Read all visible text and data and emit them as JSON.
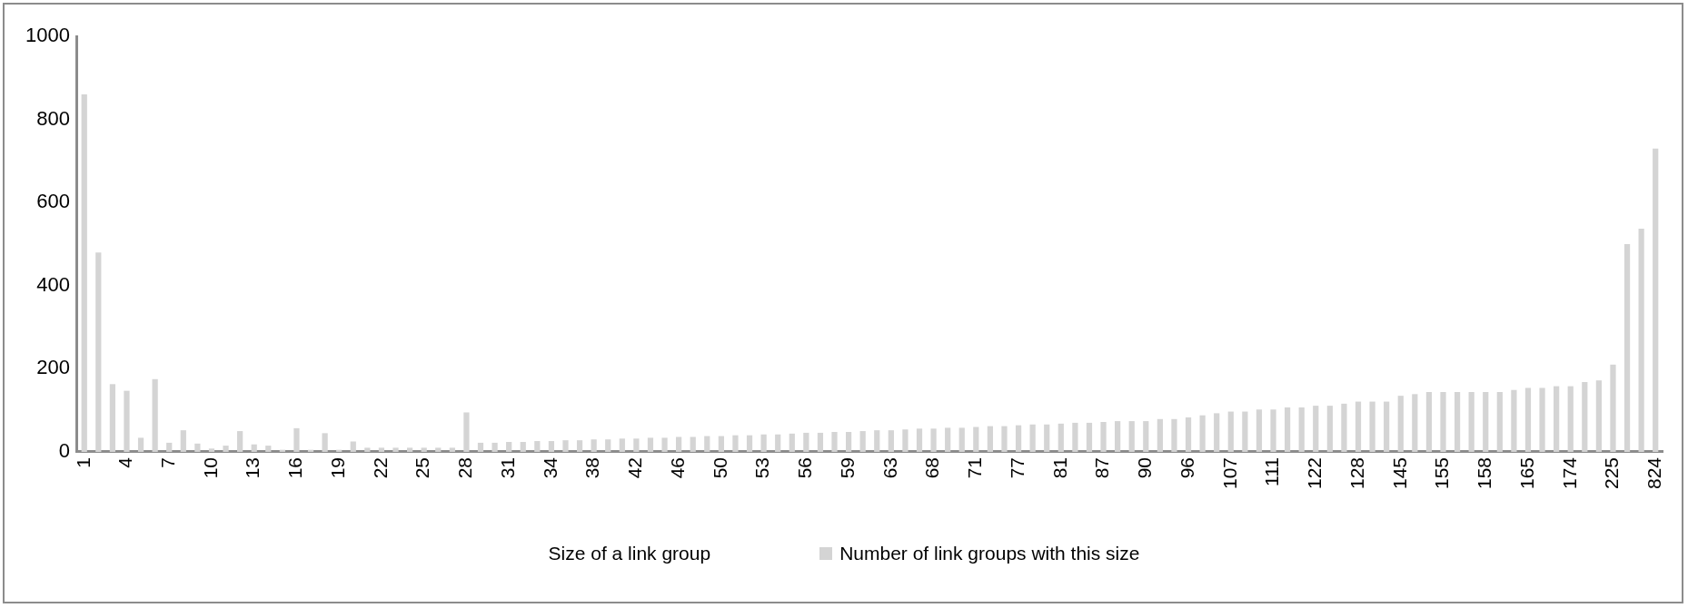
{
  "chart_data": {
    "type": "bar",
    "xlabel": "Size of a link group",
    "categories": [
      "1",
      null,
      null,
      "4",
      null,
      null,
      "7",
      null,
      null,
      "10",
      null,
      null,
      "13",
      null,
      null,
      "16",
      null,
      null,
      "19",
      null,
      null,
      "22",
      null,
      null,
      "25",
      null,
      null,
      "28",
      null,
      null,
      "31",
      null,
      null,
      "34",
      null,
      null,
      "38",
      null,
      null,
      "42",
      null,
      null,
      "46",
      null,
      null,
      "50",
      null,
      null,
      "53",
      null,
      null,
      "56",
      null,
      null,
      "59",
      null,
      null,
      "63",
      null,
      null,
      "68",
      null,
      null,
      "71",
      null,
      null,
      "77",
      null,
      null,
      "81",
      null,
      null,
      "87",
      null,
      null,
      "90",
      null,
      null,
      "96",
      null,
      null,
      "107",
      null,
      null,
      "111",
      null,
      null,
      "122",
      null,
      null,
      "128",
      null,
      null,
      "145",
      null,
      null,
      "155",
      null,
      null,
      "158",
      null,
      null,
      "165",
      null,
      null,
      "174",
      null,
      null,
      "225",
      null,
      null,
      "824"
    ],
    "series": [
      {
        "name": "Number of link groups with this size",
        "color": "#d4d4d4",
        "values": [
          860,
          480,
          163,
          147,
          34,
          175,
          22,
          52,
          20,
          8,
          15,
          50,
          18,
          15,
          5,
          57,
          5,
          45,
          5,
          25,
          10,
          10,
          10,
          10,
          10,
          10,
          10,
          95,
          22,
          22,
          24,
          24,
          26,
          26,
          28,
          28,
          30,
          30,
          32,
          32,
          34,
          34,
          36,
          36,
          38,
          38,
          40,
          40,
          42,
          42,
          44,
          46,
          46,
          48,
          48,
          50,
          52,
          52,
          54,
          56,
          56,
          58,
          58,
          60,
          62,
          62,
          64,
          66,
          66,
          68,
          70,
          70,
          72,
          74,
          74,
          74,
          79,
          79,
          83,
          88,
          93,
          97,
          97,
          102,
          102,
          107,
          107,
          111,
          111,
          116,
          121,
          121,
          121,
          135,
          139,
          144,
          144,
          144,
          144,
          144,
          144,
          149,
          154,
          154,
          158,
          158,
          168,
          172,
          210,
          500,
          537,
          730
        ]
      }
    ],
    "ylim": [
      0,
      1000
    ],
    "yticks": [
      0,
      200,
      400,
      600,
      800,
      1000
    ],
    "grid": false,
    "legend": "bottom"
  }
}
